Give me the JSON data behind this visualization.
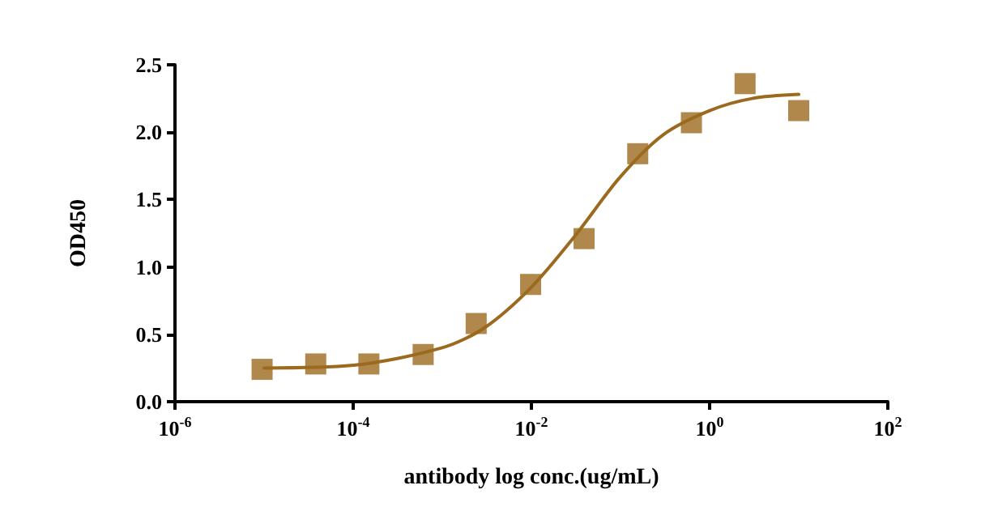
{
  "chart_data": {
    "type": "scatter",
    "xlabel": "antibody log conc.(ug/mL)",
    "ylabel": "OD450",
    "log": "x",
    "grid": false,
    "xlim": [
      1e-06,
      100
    ],
    "ylim": [
      0,
      2.5
    ],
    "xticks": [
      {
        "value": 1e-06,
        "label": "10$^{-6}$"
      },
      {
        "value": 0.0001,
        "label": "10$^{-4}$"
      },
      {
        "value": 0.01,
        "label": "10$^{-2}$"
      },
      {
        "value": 1,
        "label": "10$^{0}$"
      },
      {
        "value": 100,
        "label": "10$^{2}$"
      }
    ],
    "yticks": [
      {
        "value": 0,
        "label": "0.0"
      },
      {
        "value": 0.5,
        "label": "0.5"
      },
      {
        "value": 1,
        "label": "1.0"
      },
      {
        "value": 1.5,
        "label": "1.5"
      },
      {
        "value": 2,
        "label": "2.0"
      },
      {
        "value": 2.5,
        "label": "2.5"
      }
    ],
    "series": [
      {
        "marker": "square",
        "color": "#9c6a1e",
        "x": [
          9.5e-06,
          3.8e-05,
          0.00015,
          0.00061,
          0.0024,
          0.0098,
          0.039,
          0.156,
          0.625,
          2.5,
          10
        ],
        "values": [
          0.24,
          0.28,
          0.28,
          0.35,
          0.58,
          0.87,
          1.21,
          1.84,
          2.07,
          2.36,
          2.16
        ]
      },
      {
        "type": "line",
        "marker": "none",
        "line_style": "solid",
        "color": "#9c6a1e",
        "x": [
          1e-05,
          0.0001,
          0.001,
          0.003,
          0.01,
          0.03,
          0.1,
          0.3,
          1,
          3,
          10
        ],
        "values": [
          0.25,
          0.27,
          0.4,
          0.55,
          0.85,
          1.22,
          1.67,
          1.98,
          2.16,
          2.25,
          2.28
        ]
      }
    ]
  }
}
